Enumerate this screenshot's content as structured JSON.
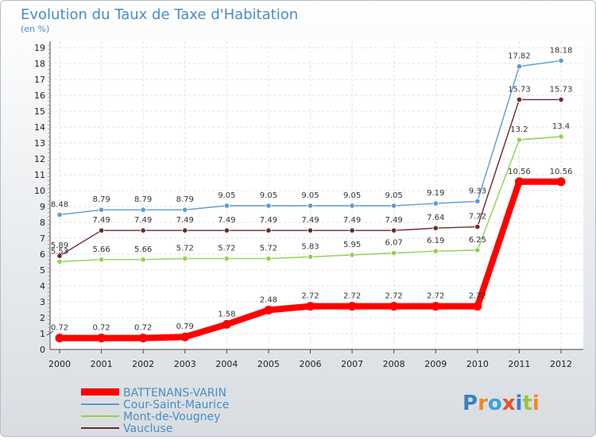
{
  "chart_data": {
    "type": "line",
    "title": "Evolution du Taux de Taxe d'Habitation",
    "subtitle": "(en %)",
    "xlabel": "",
    "ylabel": "",
    "x": [
      "2000",
      "2001",
      "2002",
      "2003",
      "2004",
      "2005",
      "2006",
      "2007",
      "2008",
      "2009",
      "2010",
      "2011",
      "2012"
    ],
    "ylim": [
      0,
      19
    ],
    "yticks": [
      0,
      1,
      2,
      3,
      4,
      5,
      6,
      7,
      8,
      9,
      10,
      11,
      12,
      13,
      14,
      15,
      16,
      17,
      18,
      19
    ],
    "grid": true,
    "legend_position": "bottom-left",
    "series": [
      {
        "name": "BATTENANS-VARIN",
        "color": "#ff0000",
        "labels": [
          "0.72",
          "0.72",
          "0.72",
          "0.79",
          "1.58",
          "2.48",
          "2.72",
          "2.72",
          "2.72",
          "2.72",
          "2.72",
          "10.56",
          "10.56"
        ],
        "values": [
          0.72,
          0.72,
          0.72,
          0.79,
          1.58,
          2.48,
          2.72,
          2.72,
          2.72,
          2.72,
          2.72,
          10.56,
          10.56
        ]
      },
      {
        "name": "Cour-Saint-Maurice",
        "color": "#5b9bd5",
        "labels": [
          "8.48",
          "8.79",
          "8.79",
          "8.79",
          "9.05",
          "9.05",
          "9.05",
          "9.05",
          "9.05",
          "9.19",
          "9.33",
          "17.82",
          "18.18"
        ],
        "values": [
          8.48,
          8.79,
          8.79,
          8.79,
          9.05,
          9.05,
          9.05,
          9.05,
          9.05,
          9.19,
          9.33,
          17.82,
          18.18
        ]
      },
      {
        "name": "Mont-de-Vougney",
        "color": "#8fd14f",
        "labels": [
          "5.53",
          "5.66",
          "5.66",
          "5.72",
          "5.72",
          "5.72",
          "5.83",
          "5.95",
          "6.07",
          "6.19",
          "6.25",
          "13.2",
          "13.4"
        ],
        "values": [
          5.53,
          5.66,
          5.66,
          5.72,
          5.72,
          5.72,
          5.83,
          5.95,
          6.07,
          6.19,
          6.25,
          13.2,
          13.4
        ]
      },
      {
        "name": "Vaucluse",
        "color": "#6b2a2a",
        "labels": [
          "5.89",
          "7.49",
          "7.49",
          "7.49",
          "7.49",
          "7.49",
          "7.49",
          "7.49",
          "7.49",
          "7.64",
          "7.72",
          "15.73",
          "15.73"
        ],
        "values": [
          5.89,
          7.49,
          7.49,
          7.49,
          7.49,
          7.49,
          7.49,
          7.49,
          7.49,
          7.64,
          7.72,
          15.73,
          15.73
        ]
      }
    ]
  },
  "logo": {
    "text": "Proxiti",
    "colors": [
      "#3a7fc4",
      "#f08a24",
      "#3aa4d8",
      "#e8502a",
      "#3a7fc4",
      "#9ac43a",
      "#f08a24"
    ]
  }
}
